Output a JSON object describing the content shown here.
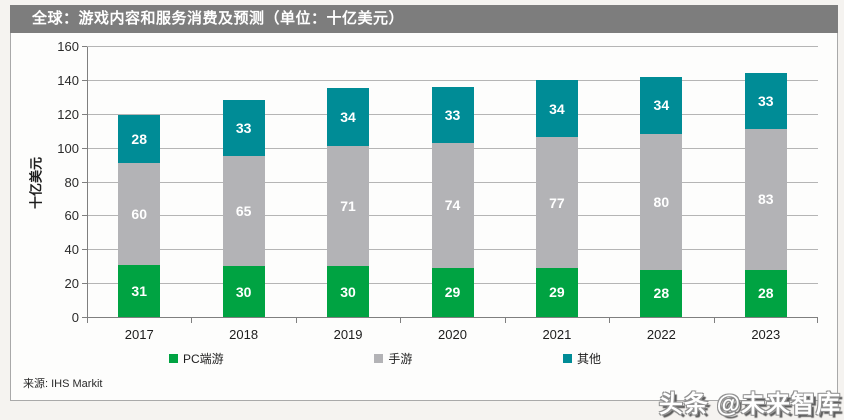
{
  "header": {
    "title": "全球：游戏内容和服务消费及预测（单位：十亿美元）",
    "bg_color": "#7d7d7d"
  },
  "chart_data": {
    "type": "bar",
    "stacked": true,
    "categories": [
      "2017",
      "2018",
      "2019",
      "2020",
      "2021",
      "2022",
      "2023"
    ],
    "series": [
      {
        "name": "PC端游",
        "color": "#00a342",
        "values": [
          31,
          30,
          30,
          29,
          29,
          28,
          28
        ]
      },
      {
        "name": "手游",
        "color": "#b3b3b6",
        "values": [
          60,
          65,
          71,
          74,
          77,
          80,
          83
        ]
      },
      {
        "name": "其他",
        "color": "#008c96",
        "values": [
          28,
          33,
          34,
          33,
          34,
          34,
          33
        ]
      }
    ],
    "ylabel": "十亿美元",
    "xlabel": "",
    "ylim": [
      0,
      160
    ],
    "yticks": [
      0,
      20,
      40,
      60,
      80,
      100,
      120,
      140,
      160
    ],
    "grid": true,
    "legend_position": "bottom",
    "value_labels": "white, centered in each segment"
  },
  "footer": {
    "source": "来源: IHS Markit"
  },
  "watermark": {
    "text": "头条 @未来智库"
  }
}
